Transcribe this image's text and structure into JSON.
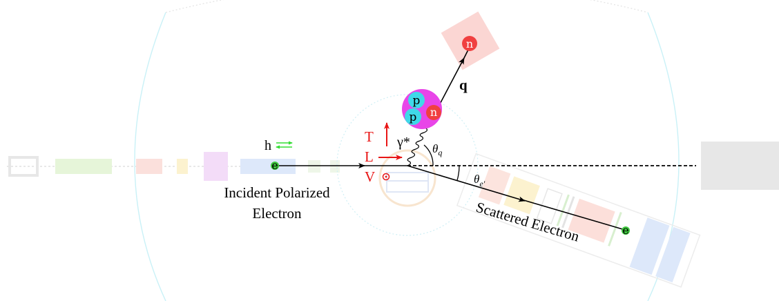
{
  "labels": {
    "helicity": "h",
    "electron": "e",
    "incident_line1": "Incident Polarized",
    "incident_line2": "Electron",
    "scattered": "Scattered Electron",
    "scattered_e": "e",
    "photon": "γ*",
    "transverse": "T",
    "longitudinal": "L",
    "vertical": "V",
    "theta_q": "θq",
    "theta_e": "θe′",
    "q_vector": "q",
    "nucleon_p1": "p",
    "nucleon_p2": "p",
    "nucleon_n": "n",
    "ejected_n": "n"
  },
  "colors": {
    "helium3": "#e845e8",
    "proton": "#3fd9e8",
    "neutron": "#f04040",
    "electron": "#3ec83e",
    "polarization": "#e81515",
    "helicity_arrows": "#33dd33",
    "target_faint": "#cfeff5",
    "neutron_detector": "#fbd6d3",
    "beamline_light": "#e7e7e7"
  }
}
